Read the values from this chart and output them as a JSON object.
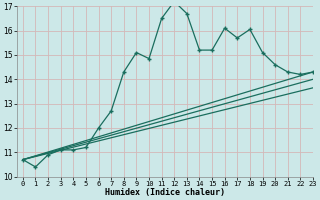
{
  "xlabel": "Humidex (Indice chaleur)",
  "bg_color": "#cce8e8",
  "grid_color": "#d4b8b8",
  "line_color": "#1a6e5e",
  "xlim": [
    -0.5,
    23
  ],
  "ylim": [
    10,
    17
  ],
  "yticks": [
    10,
    11,
    12,
    13,
    14,
    15,
    16,
    17
  ],
  "xticks": [
    0,
    1,
    2,
    3,
    4,
    5,
    6,
    7,
    8,
    9,
    10,
    11,
    12,
    13,
    14,
    15,
    16,
    17,
    18,
    19,
    20,
    21,
    22,
    23
  ],
  "main_x": [
    0,
    1,
    2,
    3,
    4,
    5,
    6,
    7,
    8,
    9,
    10,
    11,
    12,
    13,
    14,
    15,
    16,
    17,
    18,
    19,
    20,
    21,
    22,
    23
  ],
  "main_y": [
    10.7,
    10.4,
    10.9,
    11.1,
    11.1,
    11.2,
    12.0,
    12.7,
    14.3,
    15.1,
    14.85,
    16.5,
    17.2,
    16.7,
    15.2,
    15.2,
    16.1,
    15.7,
    16.05,
    15.1,
    14.6,
    14.3,
    14.2,
    14.3
  ],
  "line2_x": [
    0,
    23
  ],
  "line2_y": [
    10.7,
    14.3
  ],
  "line3_x": [
    0,
    23
  ],
  "line3_y": [
    10.7,
    13.65
  ],
  "line4_x": [
    0,
    23
  ],
  "line4_y": [
    10.7,
    14.0
  ]
}
